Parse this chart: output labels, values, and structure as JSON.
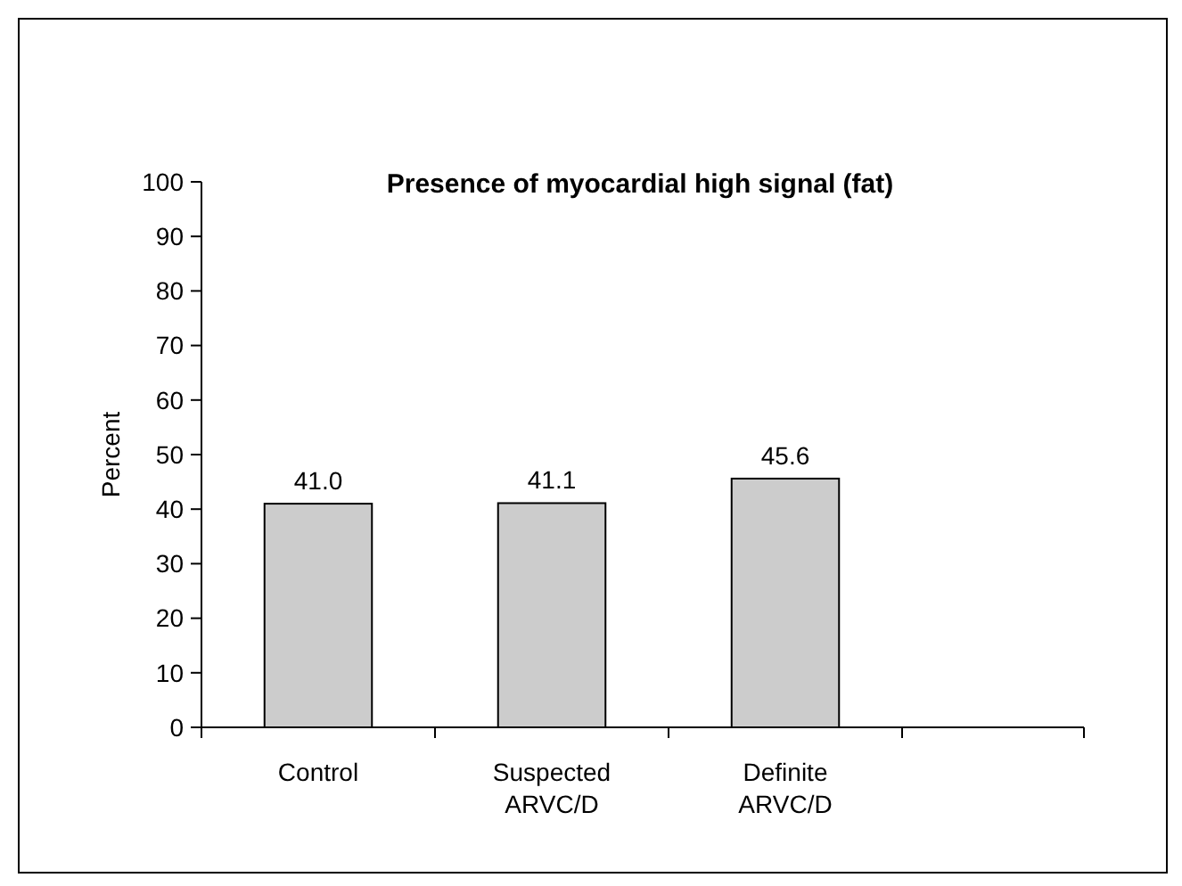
{
  "chart_data": {
    "type": "bar",
    "title": "Presence of myocardial high signal (fat)",
    "ylabel": "Percent",
    "categories": [
      "Control",
      "Suspected ARVC/D",
      "Definite ARVC/D"
    ],
    "values": [
      41.0,
      41.1,
      45.6
    ],
    "value_labels": [
      "41.0",
      "41.1",
      "45.6"
    ],
    "color": "#cccccc",
    "ylim": [
      0,
      100
    ],
    "yticks": [
      0,
      10,
      20,
      30,
      40,
      50,
      60,
      70,
      80,
      90,
      100
    ],
    "grid": false
  }
}
